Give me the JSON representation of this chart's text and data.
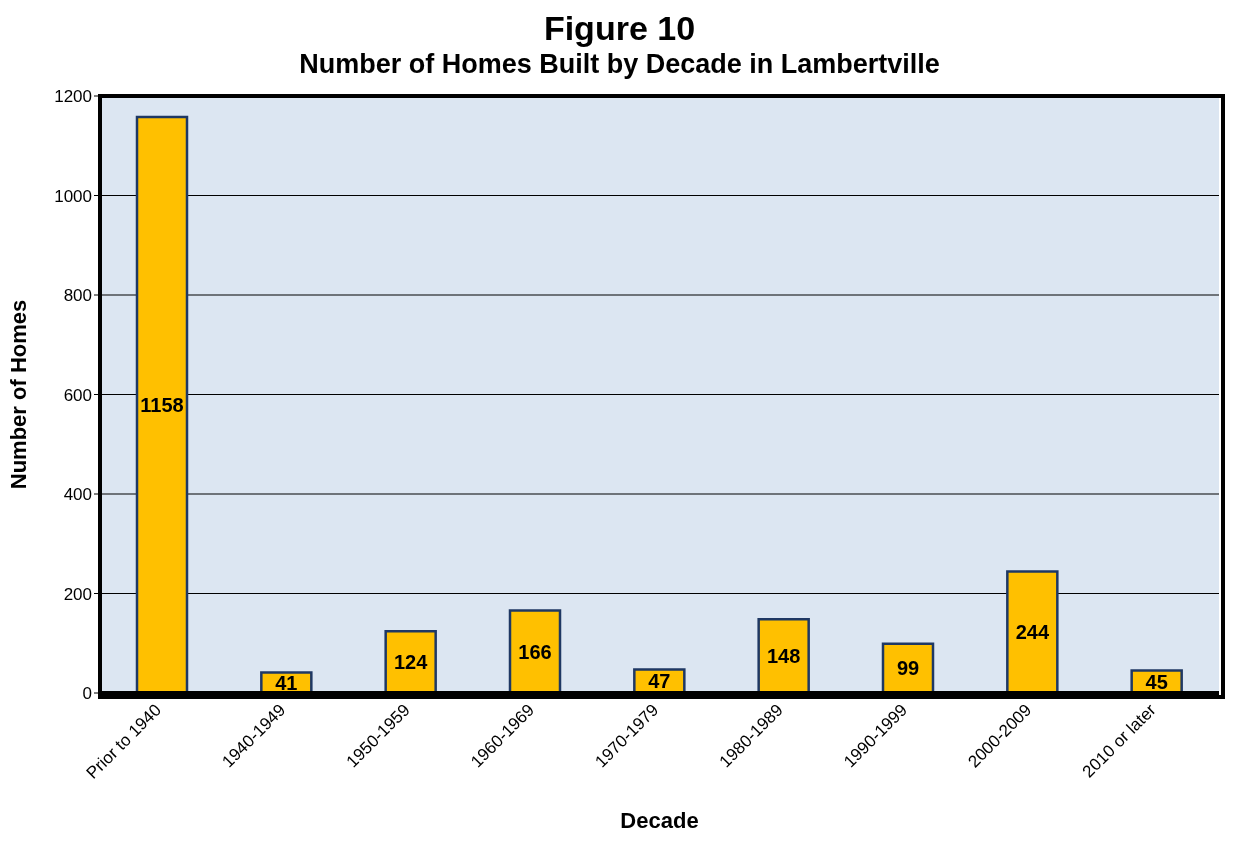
{
  "chart_data": {
    "type": "bar",
    "title": "Figure 10",
    "subtitle": "Number of Homes Built by Decade in Lambertville",
    "xlabel": "Decade",
    "ylabel": "Number of Homes",
    "categories": [
      "Prior to 1940",
      "1940-1949",
      "1950-1959",
      "1960-1969",
      "1970-1979",
      "1980-1989",
      "1990-1999",
      "2000-2009",
      "2010 or later"
    ],
    "values": [
      1158,
      41,
      124,
      166,
      47,
      148,
      99,
      244,
      45
    ],
    "color": "#ffc000",
    "ylim": [
      0,
      1200
    ],
    "yticks": [
      0,
      200,
      400,
      600,
      800,
      1000,
      1200
    ],
    "grid": "y",
    "data_labels": true
  }
}
